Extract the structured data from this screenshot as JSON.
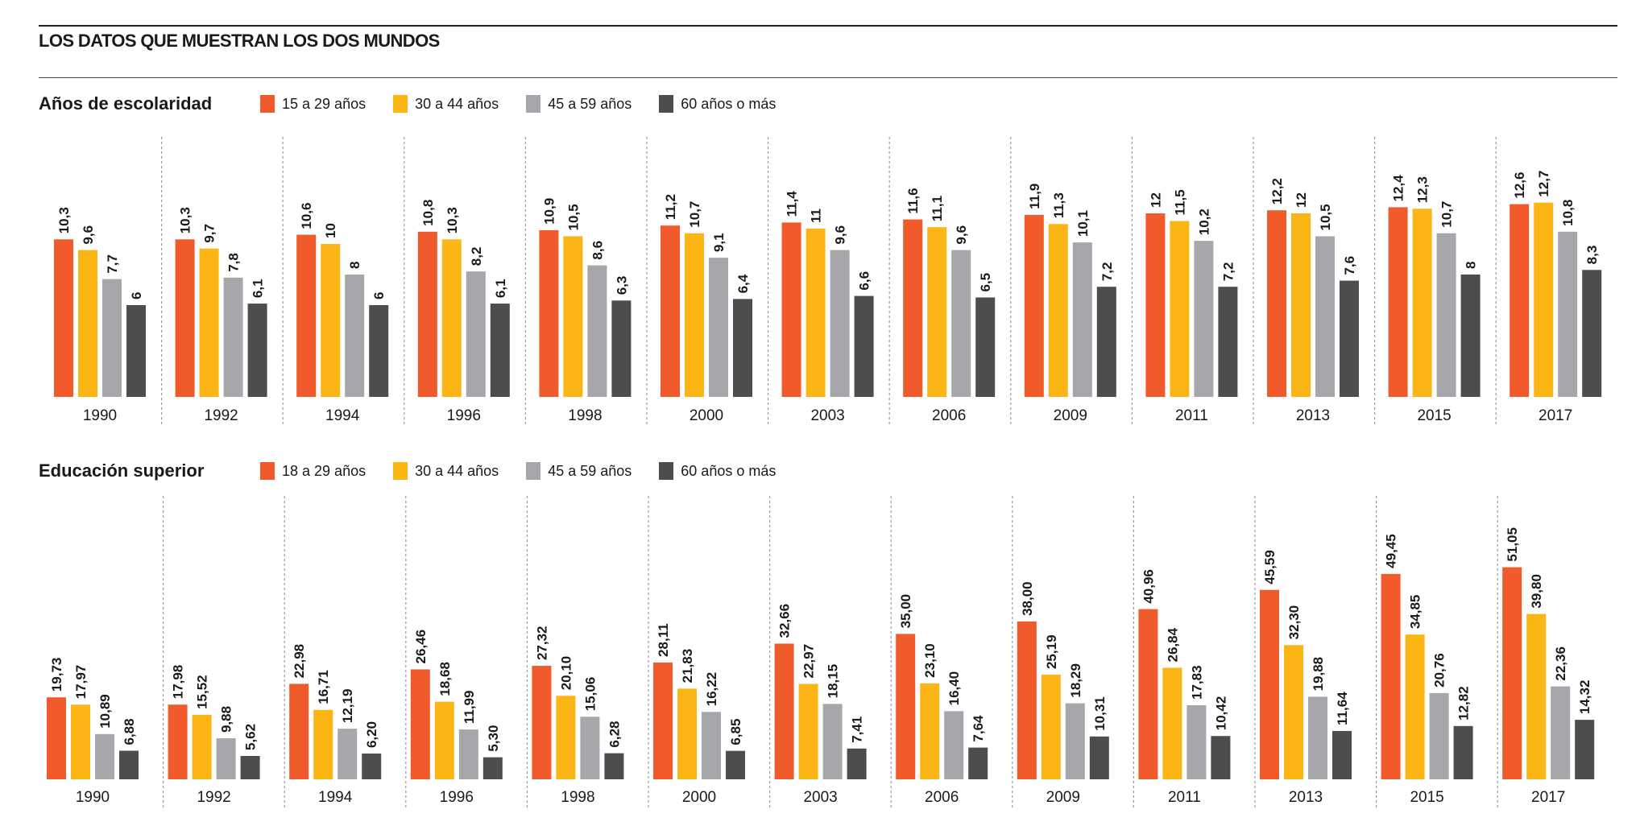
{
  "header": {
    "title": "LOS DATOS QUE MUESTRAN LOS DOS MUNDOS"
  },
  "colors": {
    "series1": "#f15a2b",
    "series2": "#fbb615",
    "series3": "#a6a7aa",
    "series4": "#4d4d4f"
  },
  "chart_data": [
    {
      "type": "bar",
      "title": "Años de escolaridad",
      "categories": [
        "1990",
        "1992",
        "1994",
        "1996",
        "1998",
        "2000",
        "2003",
        "2006",
        "2009",
        "2011",
        "2013",
        "2015",
        "2017"
      ],
      "series": [
        {
          "name": "15 a 29 años",
          "values": [
            10.3,
            10.3,
            10.6,
            10.8,
            10.9,
            11.2,
            11.4,
            11.6,
            11.9,
            12,
            12.2,
            12.4,
            12.6
          ],
          "labels": [
            "10,3",
            "10,3",
            "10,6",
            "10,8",
            "10,9",
            "11,2",
            "11,4",
            "11,6",
            "11,9",
            "12",
            "12,2",
            "12,4",
            "12,6"
          ]
        },
        {
          "name": "30 a 44 años",
          "values": [
            9.6,
            9.7,
            10,
            10.3,
            10.5,
            10.7,
            11,
            11.1,
            11.3,
            11.5,
            12,
            12.3,
            12.7
          ],
          "labels": [
            "9,6",
            "9,7",
            "10",
            "10,3",
            "10,5",
            "10,7",
            "11",
            "11,1",
            "11,3",
            "11,5",
            "12",
            "12,3",
            "12,7"
          ]
        },
        {
          "name": "45 a 59 años",
          "values": [
            7.7,
            7.8,
            8,
            8.2,
            8.6,
            9.1,
            9.6,
            9.6,
            10.1,
            10.2,
            10.5,
            10.7,
            10.8
          ],
          "labels": [
            "7,7",
            "7,8",
            "8",
            "8,2",
            "8,6",
            "9,1",
            "9,6",
            "9,6",
            "10,1",
            "10,2",
            "10,5",
            "10,7",
            "10,8"
          ]
        },
        {
          "name": "60 años o más",
          "values": [
            6,
            6.1,
            6,
            6.1,
            6.3,
            6.4,
            6.6,
            6.5,
            7.2,
            7.2,
            7.6,
            8,
            8.3
          ],
          "labels": [
            "6",
            "6,1",
            "6",
            "6,1",
            "6,3",
            "6,4",
            "6,6",
            "6,5",
            "7,2",
            "7,2",
            "7,6",
            "8",
            "8,3"
          ]
        }
      ]
    },
    {
      "type": "bar",
      "title": "Educación superior",
      "categories": [
        "1990",
        "1992",
        "1994",
        "1996",
        "1998",
        "2000",
        "2003",
        "2006",
        "2009",
        "2011",
        "2013",
        "2015",
        "2017"
      ],
      "series": [
        {
          "name": "18 a 29 años",
          "values": [
            19.73,
            17.98,
            22.98,
            26.46,
            27.32,
            28.11,
            32.66,
            35.0,
            38.0,
            40.96,
            45.59,
            49.45,
            51.05
          ],
          "labels": [
            "19,73",
            "17,98",
            "22,98",
            "26,46",
            "27,32",
            "28,11",
            "32,66",
            "35,00",
            "38,00",
            "40,96",
            "45,59",
            "49,45",
            "51,05"
          ]
        },
        {
          "name": "30 a 44 años",
          "values": [
            17.97,
            15.52,
            16.71,
            18.68,
            20.1,
            21.83,
            22.97,
            23.1,
            25.19,
            26.84,
            32.3,
            34.85,
            39.8
          ],
          "labels": [
            "17,97",
            "15,52",
            "16,71",
            "18,68",
            "20,10",
            "21,83",
            "22,97",
            "23,10",
            "25,19",
            "26,84",
            "32,30",
            "34,85",
            "39,80"
          ]
        },
        {
          "name": "45 a 59 años",
          "values": [
            10.89,
            9.88,
            12.19,
            11.99,
            15.06,
            16.22,
            18.15,
            16.4,
            18.29,
            17.83,
            19.88,
            20.76,
            22.36
          ],
          "labels": [
            "10,89",
            "9,88",
            "12,19",
            "11,99",
            "15,06",
            "16,22",
            "18,15",
            "16,40",
            "18,29",
            "17,83",
            "19,88",
            "20,76",
            "22,36"
          ]
        },
        {
          "name": "60 años o más",
          "values": [
            6.88,
            5.62,
            6.2,
            5.3,
            6.28,
            6.85,
            7.41,
            7.64,
            10.31,
            10.42,
            11.64,
            12.82,
            14.32
          ],
          "labels": [
            "6,88",
            "5,62",
            "6,20",
            "5,30",
            "6,28",
            "6,85",
            "7,41",
            "7,64",
            "10,31",
            "10,42",
            "11,64",
            "12,82",
            "14,32"
          ]
        }
      ]
    }
  ]
}
